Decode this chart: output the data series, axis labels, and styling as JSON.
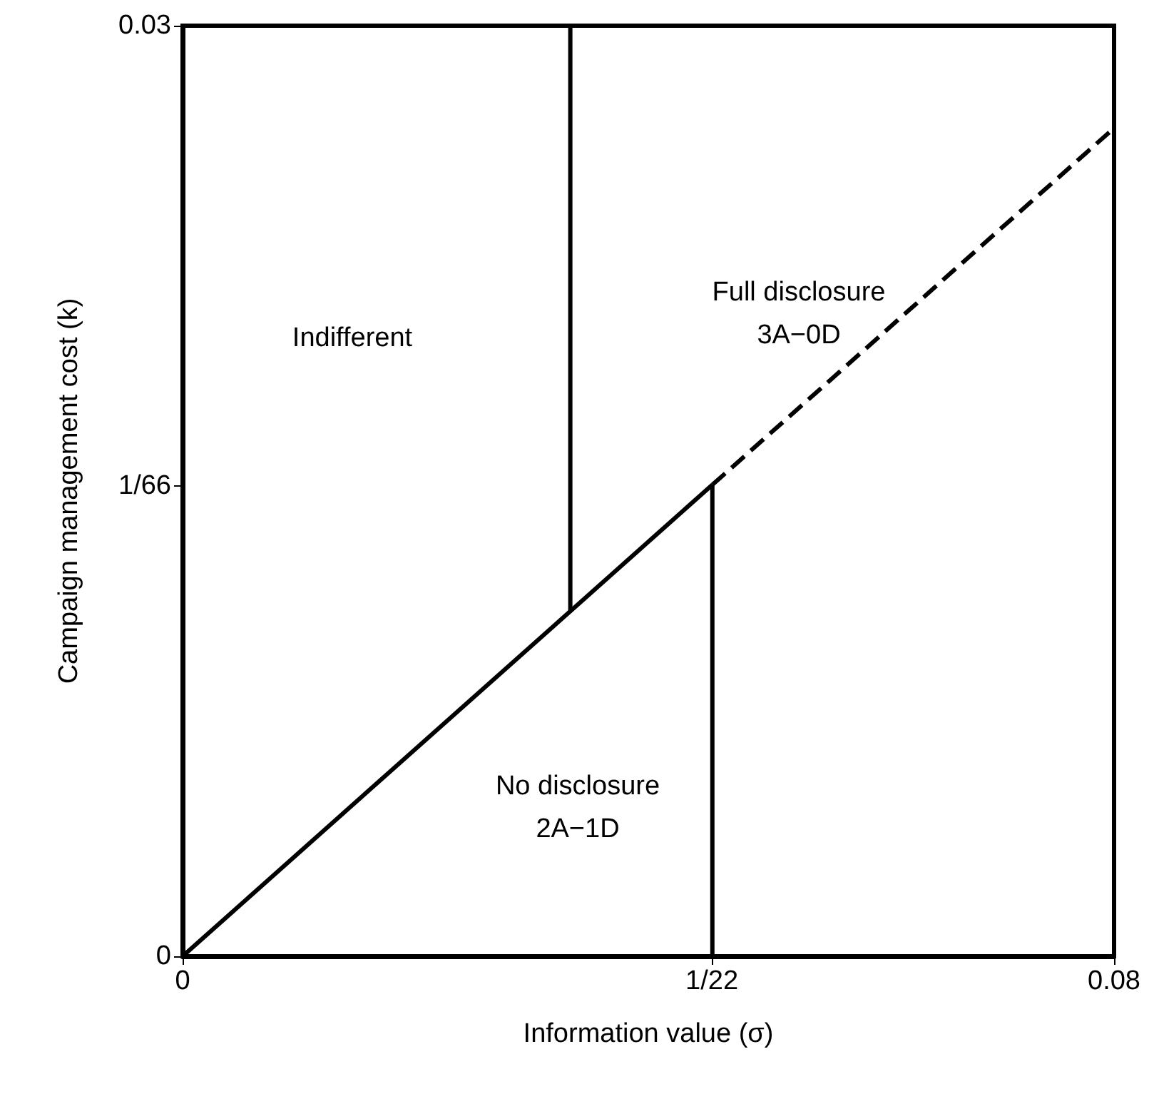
{
  "chart_data": {
    "type": "line",
    "xlabel": "Information value (σ)",
    "ylabel": "Campaign management cost (k)",
    "xlim": [
      0,
      0.08
    ],
    "ylim": [
      0,
      0.03
    ],
    "xticks": [
      0,
      {
        "value": 0.0454545,
        "label": "1/22"
      },
      0.08
    ],
    "yticks": [
      0,
      {
        "value": 0.0151515,
        "label": "1/66"
      },
      0.03
    ],
    "grid": false,
    "marker": "none",
    "series": [
      {
        "color": "#000000",
        "line_style": "solid",
        "x": [
          0,
          0.0455
        ],
        "values": [
          0,
          0.0152
        ]
      },
      {
        "color": "#000000",
        "line_style": "dashed",
        "x": [
          0.0455,
          0.08
        ],
        "values": [
          0.0152,
          0.0267
        ]
      },
      {
        "color": "#000000",
        "line_style": "solid",
        "x": [
          0.0333,
          0.0333
        ],
        "values": [
          0.0111,
          0.03
        ]
      },
      {
        "color": "#000000",
        "line_style": "solid",
        "x": [
          0.0455,
          0.0455
        ],
        "values": [
          0,
          0.0152
        ]
      }
    ],
    "annotations": [
      "Indifferent",
      "Full disclosure\n3A−0D",
      "No disclosure\n2A−1D"
    ]
  }
}
